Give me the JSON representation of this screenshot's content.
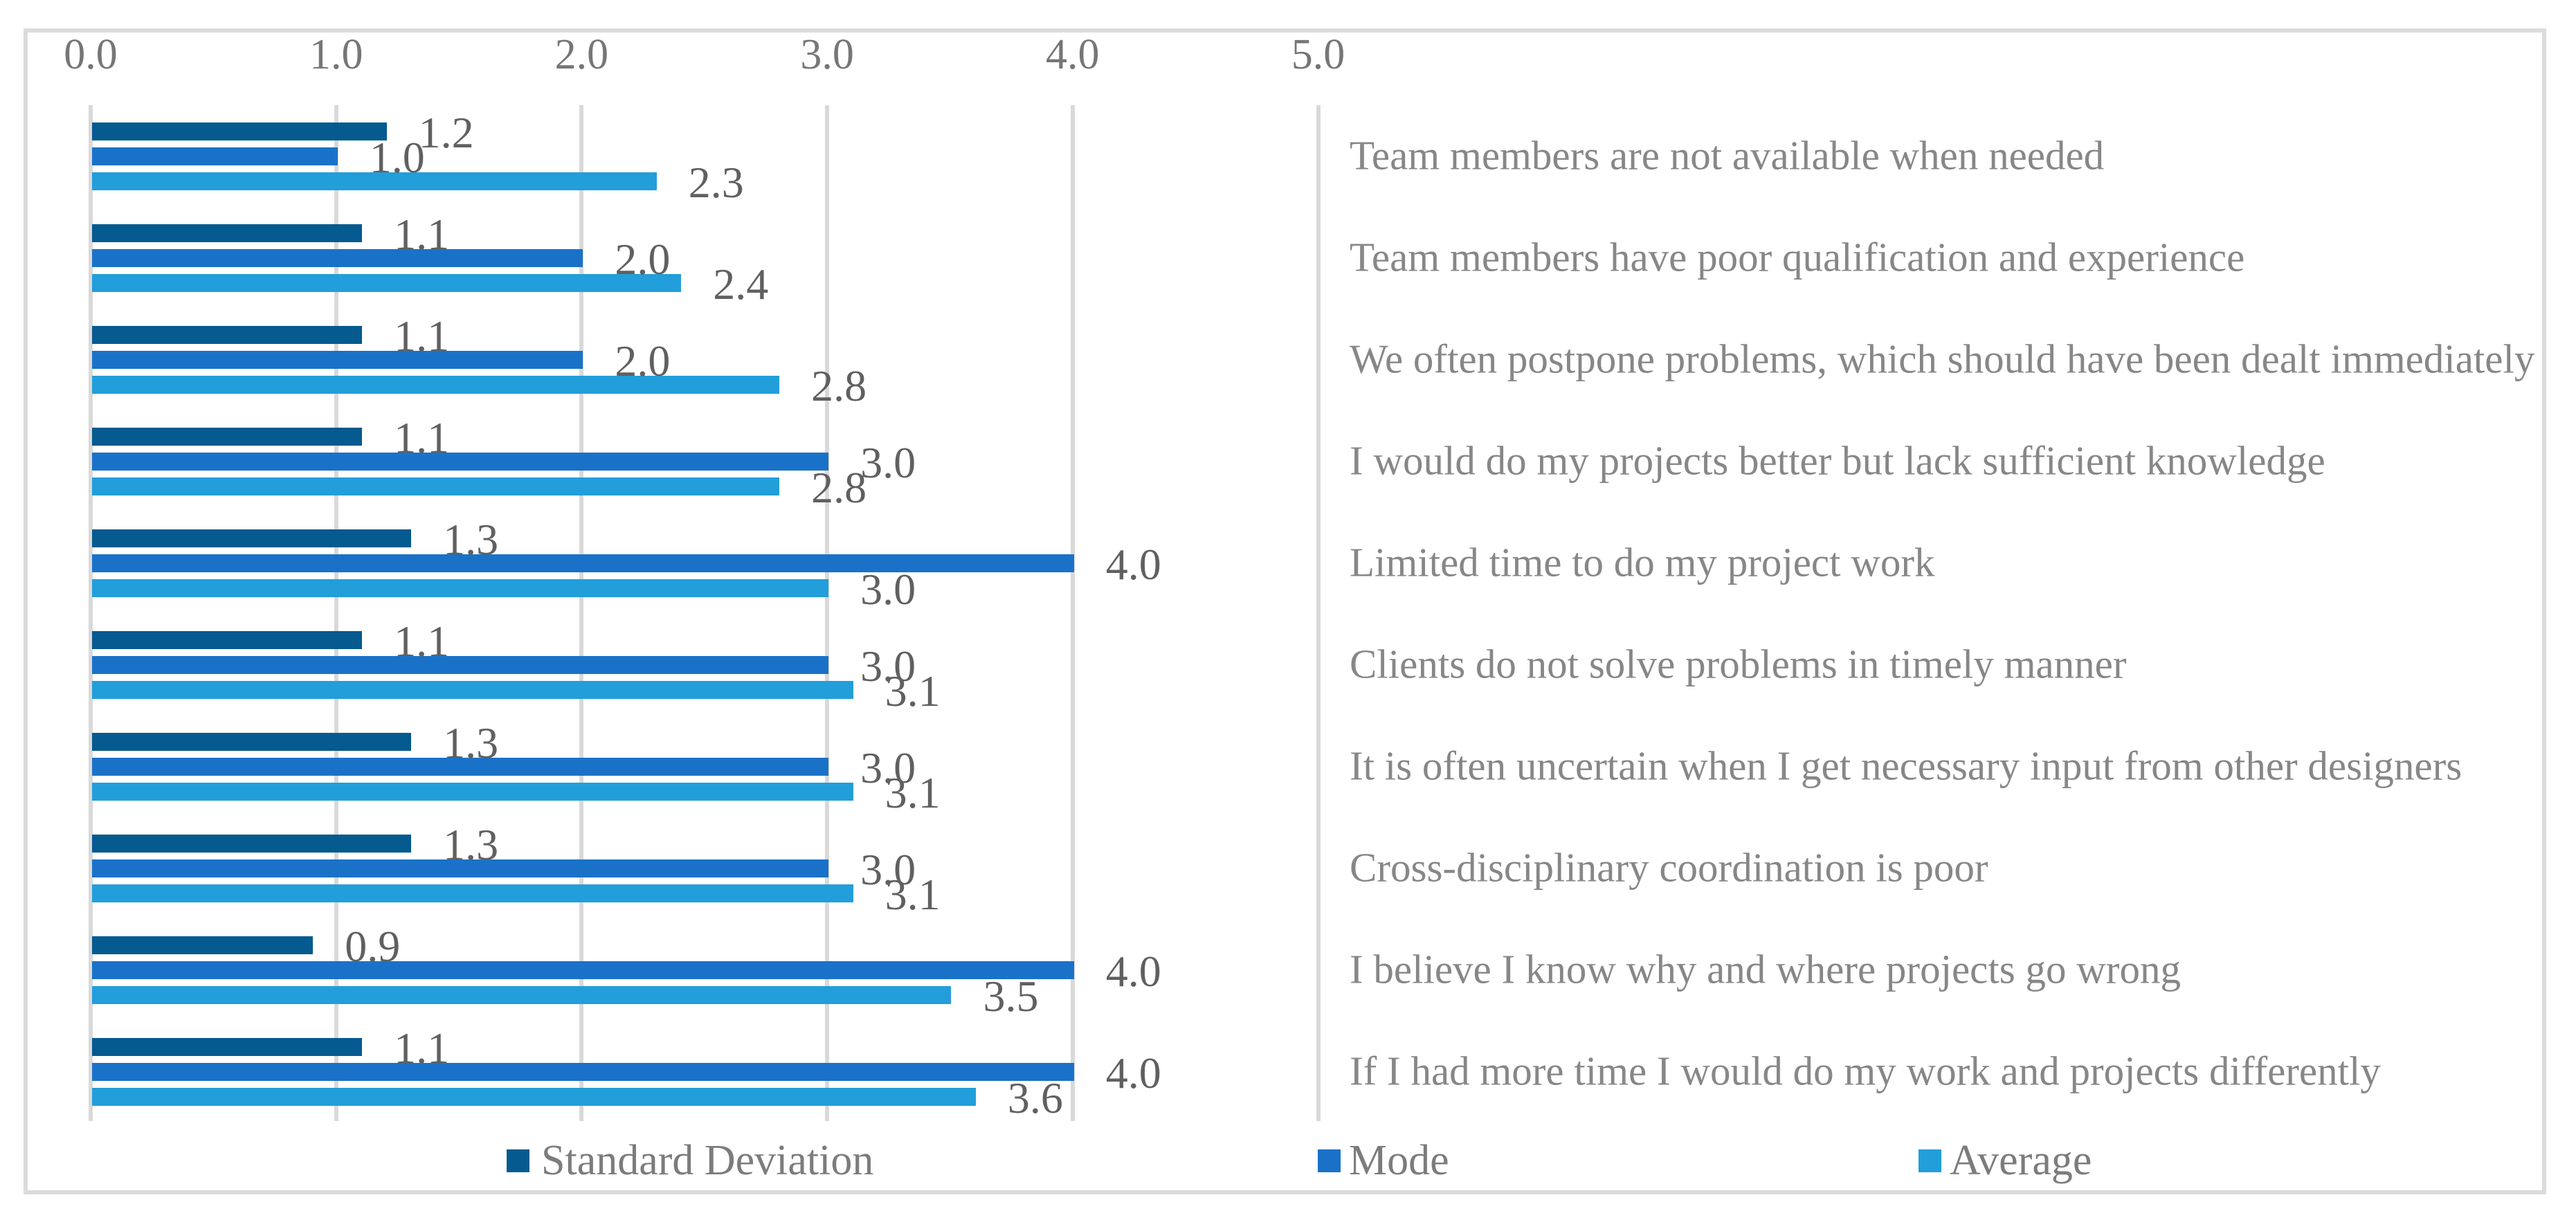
{
  "chart_data": {
    "type": "bar",
    "orientation": "horizontal",
    "title": "",
    "xlabel": "",
    "ylabel": "",
    "xlim": [
      0,
      5
    ],
    "grid": true,
    "legend_position": "bottom",
    "x_ticks": [
      "0.0",
      "1.0",
      "2.0",
      "3.0",
      "4.0",
      "5.0"
    ],
    "value_label_decimals": 1,
    "categories": [
      "Team members are not available when needed",
      "Team members have poor qualification and experience",
      "We often postpone problems, which should have been dealt immediately",
      "I would do my projects better but lack sufficient knowledge",
      "Limited time to do my project work",
      "Clients do not solve problems in timely manner",
      "It is often uncertain when I get necessary input from other designers",
      "Cross-disciplinary coordination is poor",
      "I believe I know why and where projects go wrong",
      "If I had more time I would do my work and projects differently"
    ],
    "series": [
      {
        "name": "Standard Deviation",
        "color": "#055A8F",
        "values": [
          1.2,
          1.1,
          1.1,
          1.1,
          1.3,
          1.1,
          1.3,
          1.3,
          0.9,
          1.1
        ]
      },
      {
        "name": "Mode",
        "color": "#1A72C8",
        "values": [
          1.0,
          2.0,
          2.0,
          3.0,
          4.0,
          3.0,
          3.0,
          3.0,
          4.0,
          4.0
        ]
      },
      {
        "name": "Average",
        "color": "#229EDB",
        "values": [
          2.3,
          2.4,
          2.8,
          2.8,
          3.0,
          3.1,
          3.1,
          3.1,
          3.5,
          3.6
        ]
      }
    ],
    "colors": {
      "gridline": "#D9D9D9",
      "frame_border": "#DBDBDB",
      "tick_text": "#767676",
      "category_text": "#878787",
      "value_text": "#606060",
      "legend_text": "#7C7C7C"
    }
  }
}
